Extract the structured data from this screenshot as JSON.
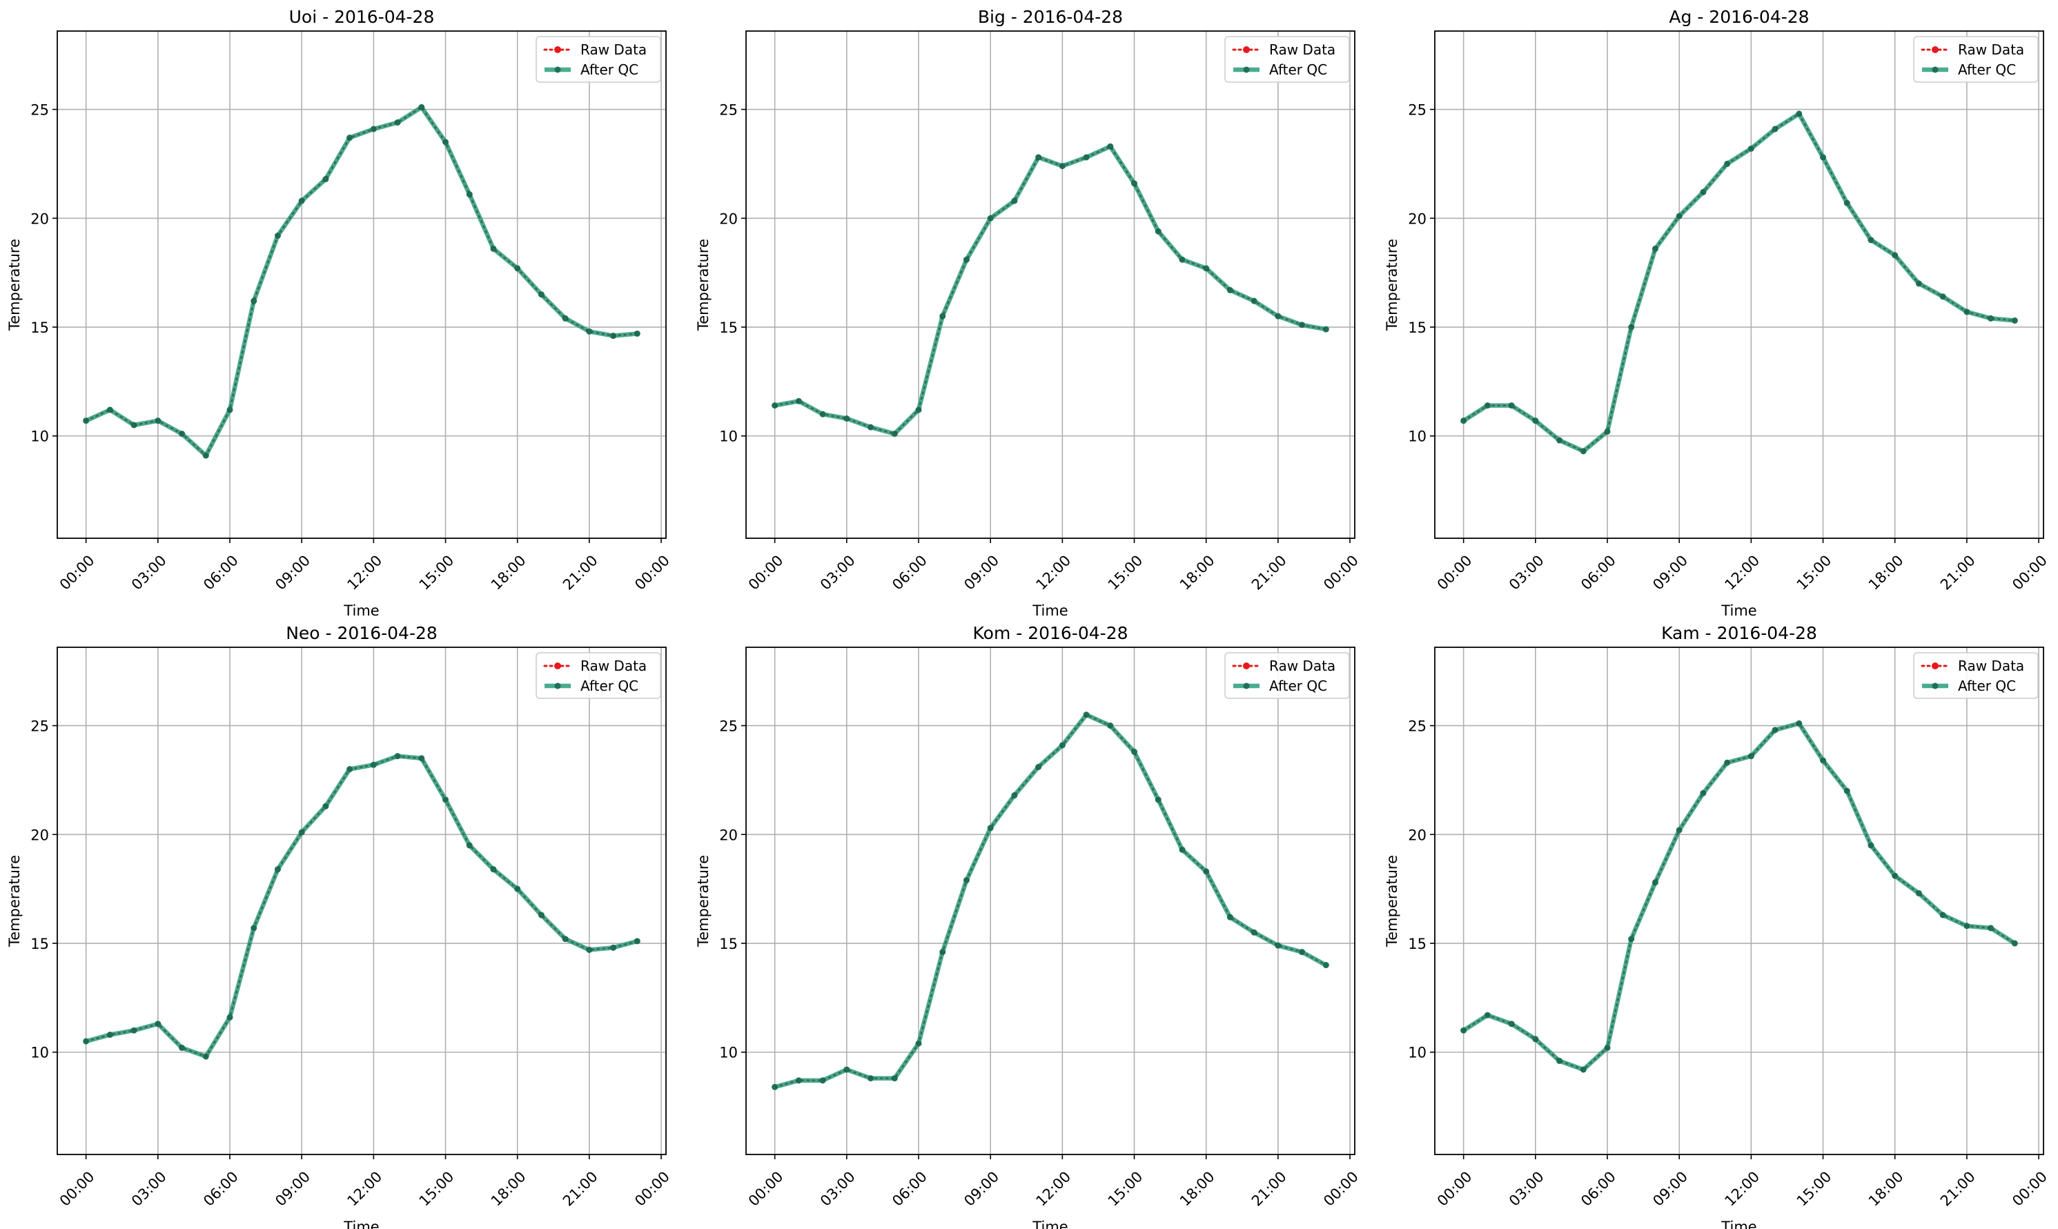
{
  "legend": {
    "raw_label": "Raw Data",
    "qc_label": "After QC"
  },
  "colors": {
    "raw": "#e41a1c",
    "qc": "#2a9d7c",
    "grid": "#b0b0b0",
    "axis": "#000000"
  },
  "chart_data": [
    {
      "type": "line",
      "title": "Uoi - 2016-04-28",
      "xlabel": "Time",
      "ylabel": "Temperature",
      "x": [
        "00:00",
        "01:00",
        "02:00",
        "03:00",
        "04:00",
        "05:00",
        "06:00",
        "07:00",
        "08:00",
        "09:00",
        "10:00",
        "11:00",
        "12:00",
        "13:00",
        "14:00",
        "15:00",
        "16:00",
        "17:00",
        "18:00",
        "19:00",
        "20:00",
        "21:00",
        "22:00",
        "23:00"
      ],
      "series": [
        {
          "name": "Raw Data",
          "values": [
            10.7,
            11.2,
            10.5,
            10.7,
            10.1,
            9.1,
            11.2,
            16.2,
            19.2,
            20.8,
            21.8,
            23.7,
            24.1,
            24.4,
            25.1,
            23.5,
            21.1,
            18.6,
            17.7,
            16.5,
            15.4,
            14.8,
            14.6,
            14.7
          ]
        },
        {
          "name": "After QC",
          "values": [
            10.7,
            11.2,
            10.5,
            10.7,
            10.1,
            9.1,
            11.2,
            16.2,
            19.2,
            20.8,
            21.8,
            23.7,
            24.1,
            24.4,
            25.1,
            23.5,
            21.1,
            18.6,
            17.7,
            16.5,
            15.4,
            14.8,
            14.6,
            14.7
          ]
        }
      ],
      "xticks": [
        "00:00",
        "03:00",
        "06:00",
        "09:00",
        "12:00",
        "15:00",
        "18:00",
        "21:00",
        "00:00"
      ],
      "yticks": [
        10,
        15,
        20,
        25
      ],
      "ylim": [
        5.3,
        28.6
      ],
      "xlim": [
        -1.2,
        24.2
      ],
      "grid": true,
      "legend_position": "top-right"
    },
    {
      "type": "line",
      "title": "Big - 2016-04-28",
      "xlabel": "Time",
      "ylabel": "Temperature",
      "x": [
        "00:00",
        "01:00",
        "02:00",
        "03:00",
        "04:00",
        "05:00",
        "06:00",
        "07:00",
        "08:00",
        "09:00",
        "10:00",
        "11:00",
        "12:00",
        "13:00",
        "14:00",
        "15:00",
        "16:00",
        "17:00",
        "18:00",
        "19:00",
        "20:00",
        "21:00",
        "22:00",
        "23:00"
      ],
      "series": [
        {
          "name": "Raw Data",
          "values": [
            11.4,
            11.6,
            11.0,
            10.8,
            10.4,
            10.1,
            11.2,
            15.5,
            18.1,
            20.0,
            20.8,
            22.8,
            22.4,
            22.8,
            23.3,
            21.6,
            19.4,
            18.1,
            17.7,
            16.7,
            16.2,
            15.5,
            15.1,
            14.9
          ]
        },
        {
          "name": "After QC",
          "values": [
            11.4,
            11.6,
            11.0,
            10.8,
            10.4,
            10.1,
            11.2,
            15.5,
            18.1,
            20.0,
            20.8,
            22.8,
            22.4,
            22.8,
            23.3,
            21.6,
            19.4,
            18.1,
            17.7,
            16.7,
            16.2,
            15.5,
            15.1,
            14.9
          ]
        }
      ],
      "xticks": [
        "00:00",
        "03:00",
        "06:00",
        "09:00",
        "12:00",
        "15:00",
        "18:00",
        "21:00",
        "00:00"
      ],
      "yticks": [
        10,
        15,
        20,
        25
      ],
      "ylim": [
        5.3,
        28.6
      ],
      "xlim": [
        -1.2,
        24.2
      ],
      "grid": true,
      "legend_position": "top-right"
    },
    {
      "type": "line",
      "title": "Ag - 2016-04-28",
      "xlabel": "Time",
      "ylabel": "Temperature",
      "x": [
        "00:00",
        "01:00",
        "02:00",
        "03:00",
        "04:00",
        "05:00",
        "06:00",
        "07:00",
        "08:00",
        "09:00",
        "10:00",
        "11:00",
        "12:00",
        "13:00",
        "14:00",
        "15:00",
        "16:00",
        "17:00",
        "18:00",
        "19:00",
        "20:00",
        "21:00",
        "22:00",
        "23:00"
      ],
      "series": [
        {
          "name": "Raw Data",
          "values": [
            10.7,
            11.4,
            11.4,
            10.7,
            9.8,
            9.3,
            10.2,
            15.0,
            18.6,
            20.1,
            21.2,
            22.5,
            23.2,
            24.1,
            24.8,
            22.8,
            20.7,
            19.0,
            18.3,
            17.0,
            16.4,
            15.7,
            15.4,
            15.3
          ]
        },
        {
          "name": "After QC",
          "values": [
            10.7,
            11.4,
            11.4,
            10.7,
            9.8,
            9.3,
            10.2,
            15.0,
            18.6,
            20.1,
            21.2,
            22.5,
            23.2,
            24.1,
            24.8,
            22.8,
            20.7,
            19.0,
            18.3,
            17.0,
            16.4,
            15.7,
            15.4,
            15.3
          ]
        }
      ],
      "xticks": [
        "00:00",
        "03:00",
        "06:00",
        "09:00",
        "12:00",
        "15:00",
        "18:00",
        "21:00",
        "00:00"
      ],
      "yticks": [
        10,
        15,
        20,
        25
      ],
      "ylim": [
        5.3,
        28.6
      ],
      "xlim": [
        -1.2,
        24.2
      ],
      "grid": true,
      "legend_position": "top-right"
    },
    {
      "type": "line",
      "title": "Neo - 2016-04-28",
      "xlabel": "Time",
      "ylabel": "Temperature",
      "x": [
        "00:00",
        "01:00",
        "02:00",
        "03:00",
        "04:00",
        "05:00",
        "06:00",
        "07:00",
        "08:00",
        "09:00",
        "10:00",
        "11:00",
        "12:00",
        "13:00",
        "14:00",
        "15:00",
        "16:00",
        "17:00",
        "18:00",
        "19:00",
        "20:00",
        "21:00",
        "22:00",
        "23:00"
      ],
      "series": [
        {
          "name": "Raw Data",
          "values": [
            10.5,
            10.8,
            11.0,
            11.3,
            10.2,
            9.8,
            11.6,
            15.7,
            18.4,
            20.1,
            21.3,
            23.0,
            23.2,
            23.6,
            23.5,
            21.6,
            19.5,
            18.4,
            17.5,
            16.3,
            15.2,
            14.7,
            14.8,
            15.1
          ]
        },
        {
          "name": "After QC",
          "values": [
            10.5,
            10.8,
            11.0,
            11.3,
            10.2,
            9.8,
            11.6,
            15.7,
            18.4,
            20.1,
            21.3,
            23.0,
            23.2,
            23.6,
            23.5,
            21.6,
            19.5,
            18.4,
            17.5,
            16.3,
            15.2,
            14.7,
            14.8,
            15.1
          ]
        }
      ],
      "xticks": [
        "00:00",
        "03:00",
        "06:00",
        "09:00",
        "12:00",
        "15:00",
        "18:00",
        "21:00",
        "00:00"
      ],
      "yticks": [
        10,
        15,
        20,
        25
      ],
      "ylim": [
        5.3,
        28.6
      ],
      "xlim": [
        -1.2,
        24.2
      ],
      "grid": true,
      "legend_position": "top-right"
    },
    {
      "type": "line",
      "title": "Kom - 2016-04-28",
      "xlabel": "Time",
      "ylabel": "Temperature",
      "x": [
        "00:00",
        "01:00",
        "02:00",
        "03:00",
        "04:00",
        "05:00",
        "06:00",
        "07:00",
        "08:00",
        "09:00",
        "10:00",
        "11:00",
        "12:00",
        "13:00",
        "14:00",
        "15:00",
        "16:00",
        "17:00",
        "18:00",
        "19:00",
        "20:00",
        "21:00",
        "22:00",
        "23:00"
      ],
      "series": [
        {
          "name": "Raw Data",
          "values": [
            8.4,
            8.7,
            8.7,
            9.2,
            8.8,
            8.8,
            10.4,
            14.6,
            17.9,
            20.3,
            21.8,
            23.1,
            24.1,
            25.5,
            25.0,
            23.8,
            21.6,
            19.3,
            18.3,
            16.2,
            15.5,
            14.9,
            14.6,
            14.0
          ]
        },
        {
          "name": "After QC",
          "values": [
            8.4,
            8.7,
            8.7,
            9.2,
            8.8,
            8.8,
            10.4,
            14.6,
            17.9,
            20.3,
            21.8,
            23.1,
            24.1,
            25.5,
            25.0,
            23.8,
            21.6,
            19.3,
            18.3,
            16.2,
            15.5,
            14.9,
            14.6,
            14.0
          ]
        }
      ],
      "xticks": [
        "00:00",
        "03:00",
        "06:00",
        "09:00",
        "12:00",
        "15:00",
        "18:00",
        "21:00",
        "00:00"
      ],
      "yticks": [
        10,
        15,
        20,
        25
      ],
      "ylim": [
        5.3,
        28.6
      ],
      "xlim": [
        -1.2,
        24.2
      ],
      "grid": true,
      "legend_position": "top-right"
    },
    {
      "type": "line",
      "title": "Kam - 2016-04-28",
      "xlabel": "Time",
      "ylabel": "Temperature",
      "x": [
        "00:00",
        "01:00",
        "02:00",
        "03:00",
        "04:00",
        "05:00",
        "06:00",
        "07:00",
        "08:00",
        "09:00",
        "10:00",
        "11:00",
        "12:00",
        "13:00",
        "14:00",
        "15:00",
        "16:00",
        "17:00",
        "18:00",
        "19:00",
        "20:00",
        "21:00",
        "22:00",
        "23:00"
      ],
      "series": [
        {
          "name": "Raw Data",
          "values": [
            11.0,
            11.7,
            11.3,
            10.6,
            9.6,
            9.2,
            10.2,
            15.2,
            17.8,
            20.2,
            21.9,
            23.3,
            23.6,
            24.8,
            25.1,
            23.4,
            22.0,
            19.5,
            18.1,
            17.3,
            16.3,
            15.8,
            15.7,
            15.0
          ]
        },
        {
          "name": "After QC",
          "values": [
            11.0,
            11.7,
            11.3,
            10.6,
            9.6,
            9.2,
            10.2,
            15.2,
            17.8,
            20.2,
            21.9,
            23.3,
            23.6,
            24.8,
            25.1,
            23.4,
            22.0,
            19.5,
            18.1,
            17.3,
            16.3,
            15.8,
            15.7,
            15.0
          ]
        }
      ],
      "xticks": [
        "00:00",
        "03:00",
        "06:00",
        "09:00",
        "12:00",
        "15:00",
        "18:00",
        "21:00",
        "00:00"
      ],
      "yticks": [
        10,
        15,
        20,
        25
      ],
      "ylim": [
        5.3,
        28.6
      ],
      "xlim": [
        -1.2,
        24.2
      ],
      "grid": true,
      "legend_position": "top-right"
    }
  ]
}
